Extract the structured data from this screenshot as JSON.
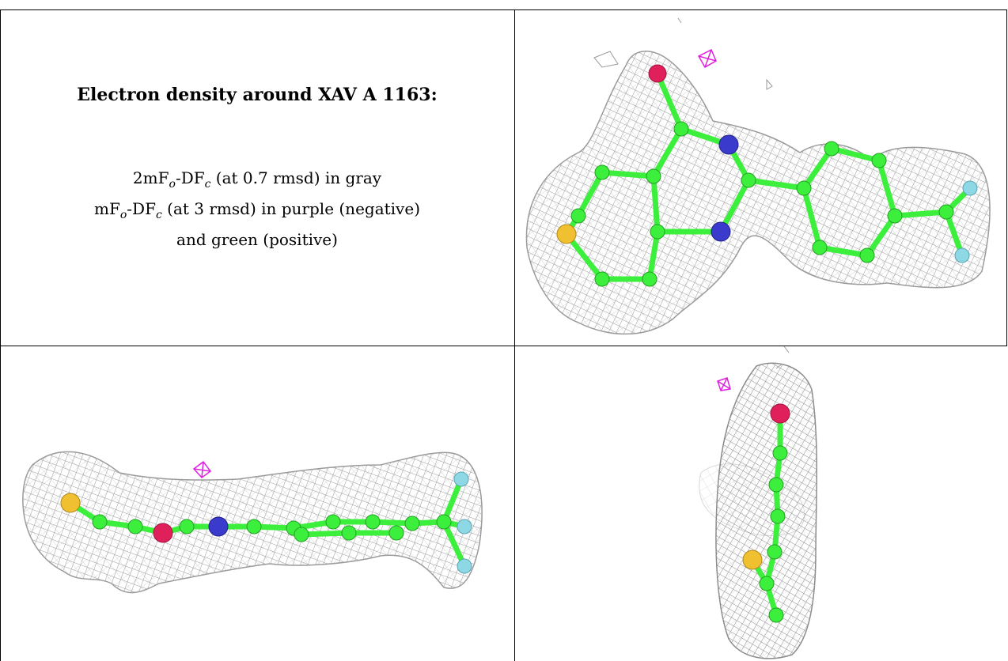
{
  "caption": {
    "title": "Electron density around XAV A 1163:",
    "line1": {
      "prefix": "2mF",
      "sub1": "o",
      "mid": "-DF",
      "sub2": "c",
      "suffix": " (at 0.7 rmsd) in gray"
    },
    "line2": {
      "prefix": "mF",
      "sub1": "o",
      "mid": "-DF",
      "sub2": "c",
      "suffix": " (at 3 rmsd) in purple (negative)"
    },
    "line3": "and green (positive)"
  },
  "colors": {
    "mesh_gray": "#9a9a9a",
    "carbon_green": "#3cef3c",
    "nitrogen_blue": "#3a3acc",
    "oxygen_red": "#e0205a",
    "sulfur_yellow": "#f0c030",
    "fluorine_cyan": "#8ed8e6",
    "negative_density_purple": "#e020e0"
  },
  "panels": [
    "view-top-right",
    "view-bottom-left",
    "view-bottom-right"
  ]
}
